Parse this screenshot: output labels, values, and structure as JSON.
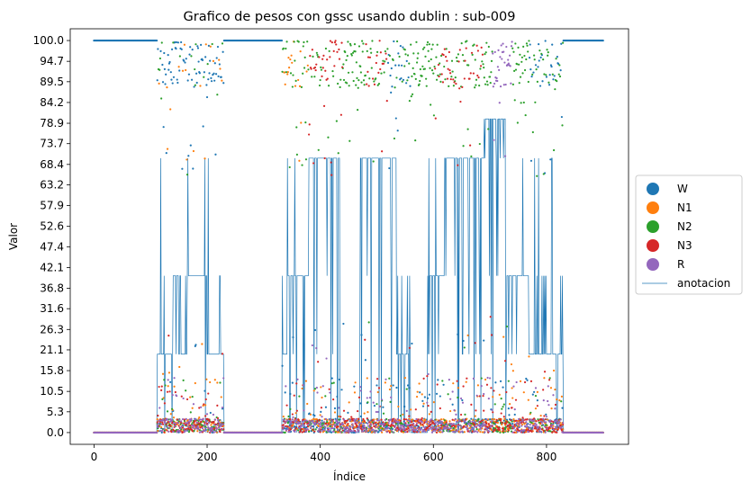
{
  "chart_data": {
    "type": "scatter",
    "title": "Grafico de pesos con gssc usando dublin :  sub-009",
    "xlabel": "Índice",
    "ylabel": "Valor",
    "xlim": [
      -42,
      945
    ],
    "ylim": [
      -3,
      103
    ],
    "x_ticks": [
      0,
      200,
      400,
      600,
      800
    ],
    "x_tick_labels": [
      "0",
      "200",
      "400",
      "600",
      "800"
    ],
    "y_ticks": [
      0.0,
      5.3,
      10.5,
      15.8,
      21.1,
      26.3,
      31.6,
      36.8,
      42.1,
      47.4,
      52.6,
      57.9,
      63.2,
      68.4,
      73.7,
      78.9,
      84.2,
      89.5,
      94.7,
      100.0
    ],
    "y_tick_labels": [
      "0.0",
      "5.3",
      "10.5",
      "15.8",
      "21.1",
      "26.3",
      "31.6",
      "36.8",
      "42.1",
      "47.4",
      "52.6",
      "57.9",
      "63.2",
      "68.4",
      "73.7",
      "78.9",
      "84.2",
      "89.5",
      "94.7",
      "100.0"
    ],
    "n_points": 901,
    "legend_position": "center-right-outside",
    "grid": false,
    "series": [
      {
        "name": "W",
        "color": "#1f77b4",
        "kind": "scatter"
      },
      {
        "name": "N1",
        "color": "#ff7f0e",
        "kind": "scatter"
      },
      {
        "name": "N2",
        "color": "#2ca02c",
        "kind": "scatter"
      },
      {
        "name": "N3",
        "color": "#d62728",
        "kind": "scatter"
      },
      {
        "name": "R",
        "color": "#9467bd",
        "kind": "scatter"
      },
      {
        "name": "anotacion",
        "color": "#1f77b4",
        "kind": "line"
      }
    ],
    "anotacion_segments": [
      {
        "x_start": 0,
        "x_end": 112,
        "value": 0
      },
      {
        "x_start": 112,
        "x_end": 140,
        "value": 20
      },
      {
        "x_start": 140,
        "x_end": 150,
        "value": 40
      },
      {
        "x_start": 150,
        "x_end": 165,
        "value": 20
      },
      {
        "x_start": 165,
        "x_end": 200,
        "value": 40
      },
      {
        "x_start": 200,
        "x_end": 230,
        "value": 20
      },
      {
        "x_start": 230,
        "x_end": 333,
        "value": 0
      },
      {
        "x_start": 333,
        "x_end": 342,
        "value": 20
      },
      {
        "x_start": 342,
        "x_end": 380,
        "value": 40
      },
      {
        "x_start": 380,
        "x_end": 435,
        "value": 70
      },
      {
        "x_start": 435,
        "x_end": 470,
        "value": 0
      },
      {
        "x_start": 470,
        "x_end": 535,
        "value": 70
      },
      {
        "x_start": 535,
        "x_end": 560,
        "value": 20
      },
      {
        "x_start": 560,
        "x_end": 590,
        "value": 0
      },
      {
        "x_start": 590,
        "x_end": 620,
        "value": 40
      },
      {
        "x_start": 620,
        "x_end": 690,
        "value": 70
      },
      {
        "x_start": 690,
        "x_end": 730,
        "value": 80
      },
      {
        "x_start": 730,
        "x_end": 770,
        "value": 40
      },
      {
        "x_start": 770,
        "x_end": 830,
        "value": 20
      },
      {
        "x_start": 830,
        "x_end": 900,
        "value": 0
      }
    ]
  }
}
